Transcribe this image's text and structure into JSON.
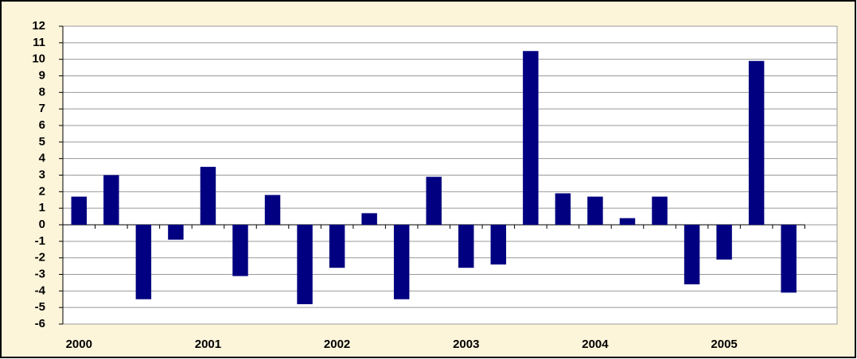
{
  "chart_data": {
    "type": "bar",
    "categories": [
      "2000",
      null,
      null,
      null,
      "2001",
      null,
      null,
      null,
      "2002",
      null,
      null,
      null,
      "2003",
      null,
      null,
      null,
      "2004",
      null,
      null,
      null,
      "2005",
      null,
      null,
      null
    ],
    "values": [
      1.7,
      3.0,
      -4.5,
      -0.9,
      3.5,
      -3.1,
      1.8,
      -4.8,
      -2.6,
      0.7,
      -4.5,
      2.9,
      -2.6,
      -2.4,
      10.5,
      1.9,
      1.7,
      0.4,
      1.7,
      -3.6,
      -2.1,
      9.9,
      -4.1,
      null
    ],
    "color": "#000080",
    "ylim": [
      -6,
      12
    ],
    "yticks": [
      -6,
      -5,
      -4,
      -3,
      -2,
      -1,
      0,
      1,
      2,
      3,
      4,
      5,
      6,
      7,
      8,
      9,
      10,
      11,
      12
    ],
    "grid": true
  }
}
